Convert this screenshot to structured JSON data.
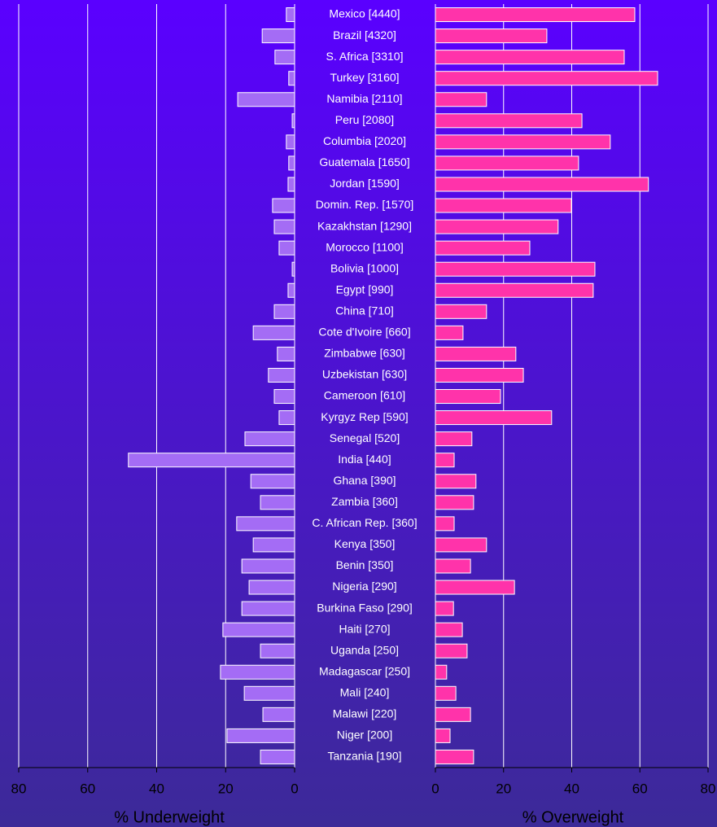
{
  "chart_data": {
    "type": "butterfly",
    "categories": [
      "Mexico [4440]",
      "Brazil [4320]",
      "S. Africa [3310]",
      "Turkey [3160]",
      "Namibia [2110]",
      "Peru [2080]",
      "Columbia [2020]",
      "Guatemala [1650]",
      "Jordan [1590]",
      "Domin. Rep. [1570]",
      "Kazakhstan [1290]",
      "Morocco [1100]",
      "Bolivia [1000]",
      "Egypt [990]",
      "China [710]",
      "Cote d'Ivoire [660]",
      "Zimbabwe [630]",
      "Uzbekistan [630]",
      "Cameroon [610]",
      "Kyrgyz Rep [590]",
      "Senegal [520]",
      "India [440]",
      "Ghana [390]",
      "Zambia [360]",
      "C. African Rep. [360]",
      "Kenya [350]",
      "Benin [350]",
      "Nigeria [290]",
      "Burkina Faso [290]",
      "Haiti [270]",
      "Uganda [250]",
      "Madagascar [250]",
      "Mali [240]",
      "Malawi [220]",
      "Niger [200]",
      "Tanzania [190]"
    ],
    "left": {
      "xlabel": "% Underweight",
      "color": "#a46cf5",
      "values": [
        2.4,
        9.4,
        5.7,
        1.7,
        16.5,
        0.7,
        2.4,
        1.7,
        1.9,
        6.4,
        5.9,
        4.5,
        0.7,
        1.9,
        5.9,
        12,
        5,
        7.6,
        5.9,
        4.5,
        14.4,
        48.2,
        12.7,
        9.9,
        16.8,
        12,
        15.3,
        13.2,
        15.3,
        20.8,
        9.9,
        21.5,
        14.6,
        9.2,
        19.6,
        9.9
      ],
      "xlim": [
        80,
        0
      ],
      "xticks": [
        80,
        60,
        40,
        20,
        0
      ]
    },
    "right": {
      "xlabel": "%  Overweight",
      "color": "#ff33aa",
      "values": [
        58.5,
        32.7,
        55.4,
        65.2,
        15,
        43,
        51.3,
        42,
        62.5,
        39.9,
        36,
        27.7,
        46.8,
        46.3,
        15,
        8.1,
        23.6,
        25.8,
        19.1,
        34.1,
        10.7,
        5.5,
        11.9,
        11.2,
        5.5,
        15,
        10.3,
        23.2,
        5.3,
        7.9,
        9.3,
        3.3,
        6,
        10.3,
        4.3,
        11.2
      ],
      "xlim": [
        0,
        80
      ],
      "xticks": [
        0,
        20,
        40,
        60,
        80
      ]
    },
    "grid": true
  }
}
